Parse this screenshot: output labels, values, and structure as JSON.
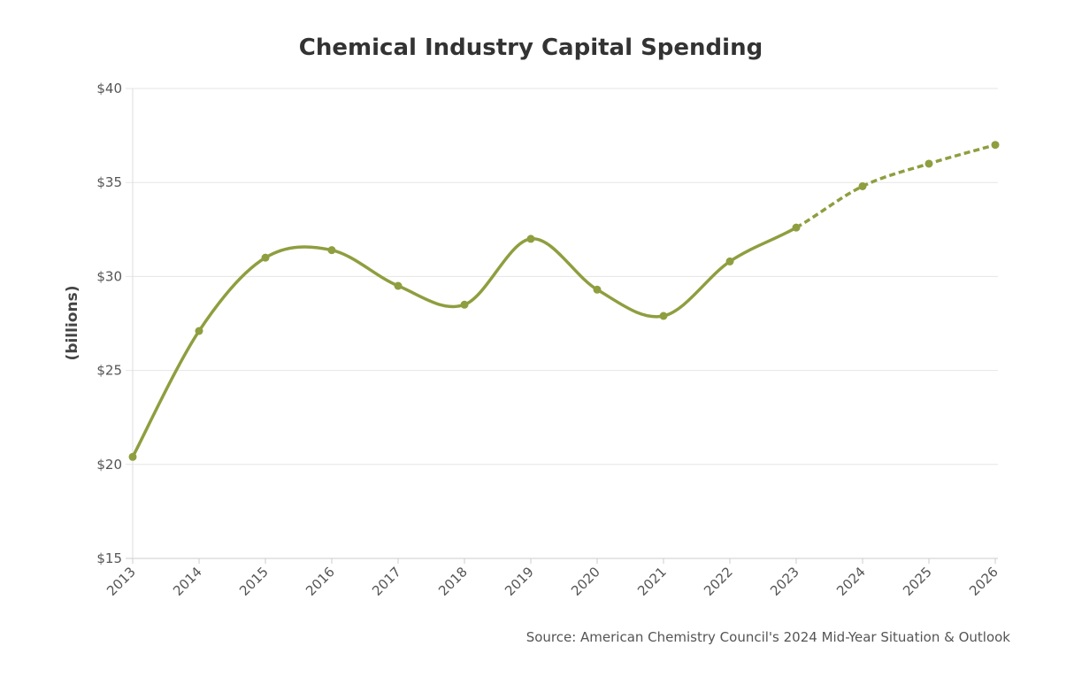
{
  "chart_data": {
    "type": "line",
    "title": "Chemical Industry Capital Spending",
    "xlabel": "",
    "ylabel": "(billions)",
    "x": [
      "2013",
      "2014",
      "2015",
      "2016",
      "2017",
      "2018",
      "2019",
      "2020",
      "2021",
      "2022",
      "2023",
      "2024",
      "2025",
      "2026"
    ],
    "series": [
      {
        "values": [
          20.4,
          27.1,
          31.0,
          31.4,
          29.5,
          28.5,
          32.0,
          29.3,
          27.9,
          30.8,
          32.6,
          34.8,
          36.0,
          37.0
        ],
        "style_note_actual_through": "2023",
        "projected_dashed_from": "2023"
      }
    ],
    "ylim": [
      15,
      40
    ],
    "yticks": [
      15,
      20,
      25,
      30,
      35,
      40
    ],
    "ytick_labels": [
      "$15",
      "$20",
      "$25",
      "$30",
      "$35",
      "$40"
    ],
    "grid": true,
    "legend": "none",
    "line_color": "#8f9e3f",
    "grid_color": "#e6e6e6"
  },
  "source": "Source: American Chemistry Council's 2024 Mid-Year Situation & Outlook"
}
